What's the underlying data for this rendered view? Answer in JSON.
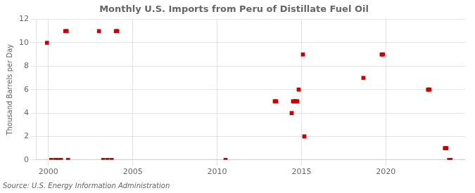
{
  "chart_data": {
    "type": "scatter",
    "title": "Monthly U.S. Imports from Peru of Distillate Fuel Oil",
    "ylabel": "Thousand Barrels per Day",
    "annotations": [
      "Source: U.S. Energy Information Administration"
    ],
    "x": [
      1999.917,
      2001.0,
      2001.083,
      2000.167,
      2000.417,
      2000.583,
      2000.75,
      2001.167,
      2003.0,
      2003.25,
      2003.5,
      2003.75,
      2004.0,
      2004.083,
      2010.5,
      2013.417,
      2013.5,
      2014.417,
      2014.5,
      2014.583,
      2014.667,
      2014.75,
      2014.833,
      2015.083,
      2015.167,
      2018.667,
      2019.75,
      2019.833,
      2022.5,
      2022.583,
      2023.5,
      2023.583,
      2023.75,
      2023.833
    ],
    "values": [
      10,
      11,
      11,
      0,
      0,
      0,
      0,
      0,
      11,
      0,
      0,
      0,
      11,
      11,
      0,
      5,
      5,
      4,
      5,
      5,
      5,
      5,
      6,
      9,
      2,
      7,
      9,
      9,
      6,
      6,
      1,
      1,
      0,
      0
    ],
    "color": "#cc0000",
    "marker": "square",
    "xlim": [
      1999.3,
      2024.7
    ],
    "ylim": [
      0,
      12
    ],
    "xticks": [
      2000,
      2005,
      2010,
      2015,
      2020
    ],
    "yticks": [
      0,
      2,
      4,
      6,
      8,
      10,
      12
    ],
    "grid": true
  }
}
